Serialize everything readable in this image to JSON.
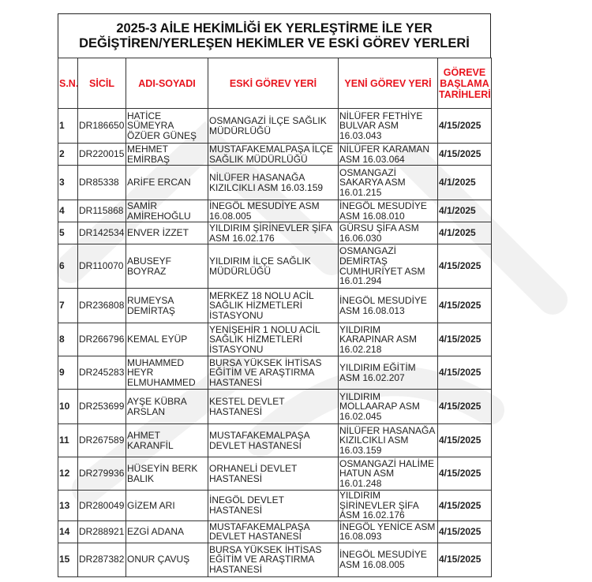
{
  "title_lines": [
    "2025-3 AİLE HEKİMLİĞİ EK YERLEŞTİRME İLE YER",
    "DEĞİŞTİREN/YERLEŞEN HEKİMLER VE ESKİ GÖREV YERLERİ"
  ],
  "header_color": "#e8141e",
  "columns": [
    "S.N.",
    "SİCİL",
    "ADI-SOYADI",
    "ESKİ GÖREV YERİ",
    "YENİ GÖREV YERİ",
    "GÖREVE BAŞLAMA TARİHLERİ"
  ],
  "rows": [
    [
      "1",
      "DR186650",
      "HATİCE SÜMEYRA ÖZÜER GÜNEŞ",
      "OSMANGAZİ İLÇE SAĞLIK MÜDÜRLÜĞÜ",
      "NİLÜFER FETHİYE BULVAR ASM 16.03.043",
      "4/15/2025"
    ],
    [
      "2",
      "DR220015",
      "MEHMET EMİRBAŞ",
      "MUSTAFAKEMALPAŞA İLÇE SAĞLIK MÜDÜRLÜĞÜ",
      "NİLÜFER KARAMAN ASM 16.03.064",
      "4/15/2025"
    ],
    [
      "3",
      "DR85338",
      "ARİFE ERCAN",
      "NİLÜFER HASANAĞA KIZILCIKLI ASM 16.03.159",
      "OSMANGAZİ SAKARYA ASM 16.01.215",
      "4/1/2025"
    ],
    [
      "4",
      "DR115868",
      "SAMİR AMİREHOĞLU",
      "İNEGÖL MESUDİYE ASM 16.08.005",
      "İNEGÖL MESUDİYE ASM 16.08.010",
      "4/1/2025"
    ],
    [
      "5",
      "DR142534",
      "ENVER İZZET",
      "YILDIRIM ŞİRİNEVLER ŞİFA ASM 16.02.176",
      "GÜRSU ŞİFA ASM 16.06.030",
      "4/1/2025"
    ],
    [
      "6",
      "DR110070",
      "ABUSEYF BOYRAZ",
      "YILDIRIM İLÇE SAĞLIK MÜDÜRLÜĞÜ",
      "OSMANGAZİ DEMİRTAŞ CUMHURİYET ASM 16.01.294",
      "4/15/2025"
    ],
    [
      "7",
      "DR236808",
      "RUMEYSA DEMİRTAŞ",
      "MERKEZ 18 NOLU ACİL SAĞLIK HİZMETLERİ İSTASYONU",
      "İNEGÖL MESUDİYE ASM 16.08.013",
      "4/15/2025"
    ],
    [
      "8",
      "DR266796",
      "KEMAL EYÜP",
      "YENİŞEHİR 1 NOLU ACİL SAĞLIK HİZMETLERİ İSTASYONU",
      "YILDIRIM KARAPINAR ASM 16.02.218",
      "4/15/2025"
    ],
    [
      "9",
      "DR245283",
      "MUHAMMED HEYR ELMUHAMMED",
      "BURSA YÜKSEK İHTİSAS EĞİTİM VE ARAŞTIRMA HASTANESİ",
      "YILDIRIM EĞİTİM ASM 16.02.207",
      "4/15/2025"
    ],
    [
      "10",
      "DR253699",
      "AYŞE KÜBRA ARSLAN",
      "KESTEL DEVLET HASTANESİ",
      "YILDIRIM MOLLAARAP ASM 16.02.045",
      "4/15/2025"
    ],
    [
      "11",
      "DR267589",
      "AHMET KARANFİL",
      "MUSTAFAKEMALPAŞA DEVLET HASTANESİ",
      "NİLÜFER HASANAĞA KIZILCIKLI ASM 16.03.159",
      "4/15/2025"
    ],
    [
      "12",
      "DR279936",
      "HÜSEYİN BERK BALIK",
      "ORHANELİ DEVLET HASTANESİ",
      "OSMANGAZİ HALİME HATUN ASM 16.01.248",
      "4/15/2025"
    ],
    [
      "13",
      "DR280049",
      "GİZEM ARI",
      "İNEGÖL DEVLET HASTANESİ",
      "YILDIRIM ŞİRİNEVLER ŞİFA ASM 16.02.176",
      "4/15/2025"
    ],
    [
      "14",
      "DR288921",
      "EZGİ ADANA",
      "MUSTAFAKEMALPAŞA DEVLET HASTANESİ",
      "İNEGÖL YENİCE ASM 16.08.093",
      "4/15/2025"
    ],
    [
      "15",
      "DR287382",
      "ONUR ÇAVUŞ",
      "BURSA YÜKSEK İHTİSAS EĞİTİM VE ARAŞTIRMA HASTANESİ",
      "İNEGÖL MESUDİYE ASM 16.08.005",
      "4/15/2025"
    ]
  ]
}
